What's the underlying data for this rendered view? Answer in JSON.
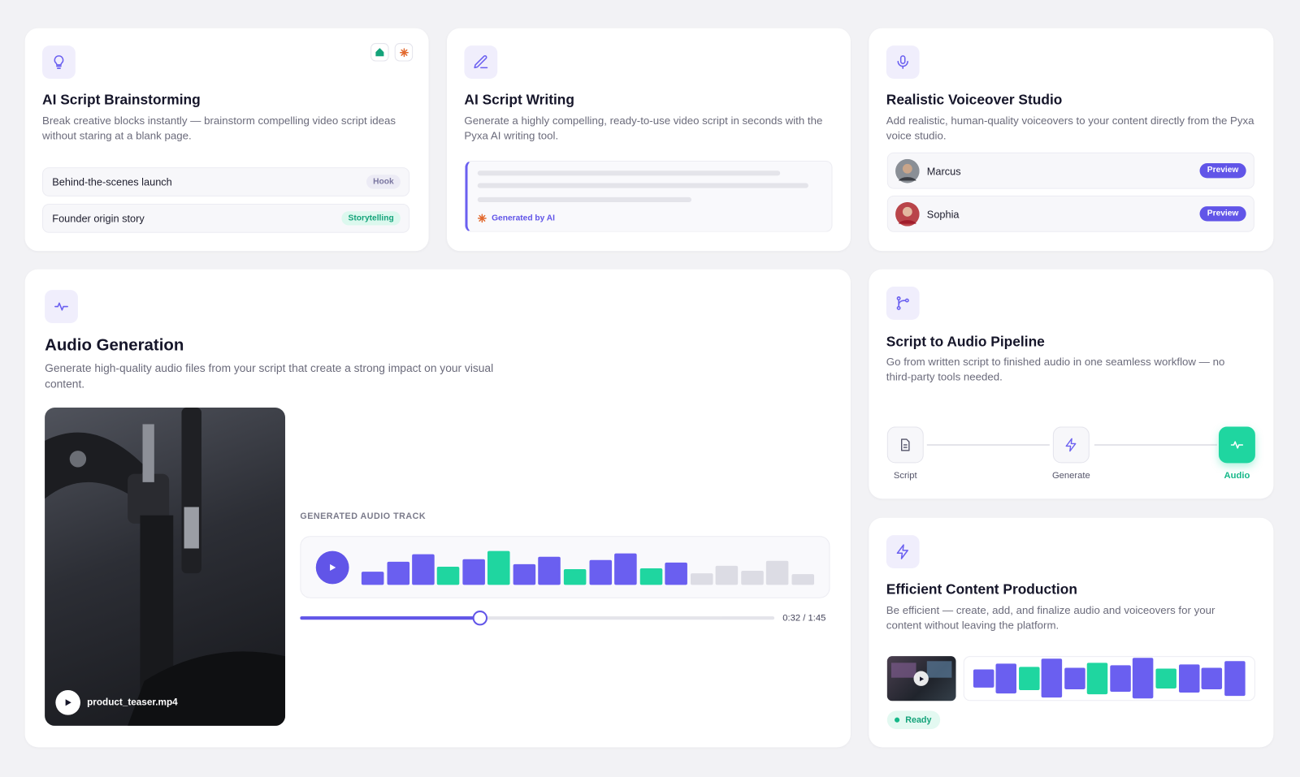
{
  "brainstorm": {
    "title": "AI Script Brainstorming",
    "description": "Break creative blocks instantly — brainstorm compelling video script ideas without staring at a blank page.",
    "items": [
      {
        "label": "Behind-the-scenes launch",
        "tag": "Hook"
      },
      {
        "label": "Founder origin story",
        "tag": "Storytelling"
      }
    ]
  },
  "writing": {
    "title": "AI Script Writing",
    "description": "Generate a highly compelling, ready-to-use video script in seconds with the Pyxa AI writing tool.",
    "badge": "Generated by AI"
  },
  "voiceover": {
    "title": "Realistic Voiceover Studio",
    "description": "Add realistic, human-quality voiceovers to your content directly from the Pyxa voice studio.",
    "voices": [
      {
        "name": "Marcus",
        "action": "Preview"
      },
      {
        "name": "Sophia",
        "action": "Preview"
      }
    ]
  },
  "audio": {
    "title": "Audio Generation",
    "description": "Generate high-quality audio files from your script that create a strong impact on your visual content.",
    "file": "product_teaser.mp4",
    "track_label": "GENERATED AUDIO TRACK",
    "time": "0:32 / 1:45"
  },
  "pipeline": {
    "title": "Script to Audio Pipeline",
    "description": "Go from written script to finished audio in one seamless workflow — no third-party tools needed.",
    "steps": [
      "Script",
      "Generate",
      "Audio"
    ]
  },
  "production": {
    "title": "Efficient Content Production",
    "description": "Be efficient — create, add, and finalize audio and voiceovers for your content without leaving the platform.",
    "status": "Ready"
  }
}
